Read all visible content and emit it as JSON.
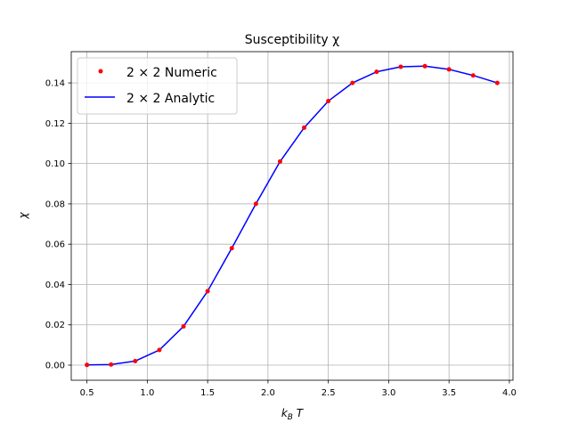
{
  "chart_data": {
    "type": "line",
    "title": "Susceptibility χ",
    "xlabel": "k_B T",
    "ylabel": "χ",
    "xlim": [
      0.37,
      4.03
    ],
    "ylim": [
      -0.0075,
      0.1555
    ],
    "grid": true,
    "legend_position": "top-left",
    "x_ticks": [
      0.5,
      1.0,
      1.5,
      2.0,
      2.5,
      3.0,
      3.5,
      4.0
    ],
    "x_tick_labels": [
      "0.5",
      "1.0",
      "1.5",
      "2.0",
      "2.5",
      "3.0",
      "3.5",
      "4.0"
    ],
    "y_ticks": [
      0.0,
      0.02,
      0.04,
      0.06,
      0.08,
      0.1,
      0.12,
      0.14
    ],
    "y_tick_labels": [
      "0.00",
      "0.02",
      "0.04",
      "0.06",
      "0.08",
      "0.10",
      "0.12",
      "0.14"
    ],
    "x": [
      0.5,
      0.7,
      0.9,
      1.1,
      1.3,
      1.5,
      1.7,
      1.9,
      2.1,
      2.3,
      2.5,
      2.7,
      2.9,
      3.1,
      3.3,
      3.5,
      3.7,
      3.9
    ],
    "series": [
      {
        "name": "2 × 2 Numeric",
        "style": "points",
        "color": "#ff0000",
        "values": [
          0.0001,
          0.0003,
          0.002,
          0.0075,
          0.0192,
          0.0367,
          0.058,
          0.08,
          0.101,
          0.1178,
          0.131,
          0.14,
          0.1455,
          0.148,
          0.1483,
          0.1467,
          0.1437,
          0.14
        ]
      },
      {
        "name": "2 × 2 Analytic",
        "style": "line",
        "color": "#0000ff",
        "values": [
          0.0001,
          0.0003,
          0.002,
          0.0075,
          0.0192,
          0.0367,
          0.058,
          0.08,
          0.101,
          0.1178,
          0.131,
          0.14,
          0.1455,
          0.148,
          0.1483,
          0.1467,
          0.1437,
          0.14
        ]
      }
    ]
  }
}
